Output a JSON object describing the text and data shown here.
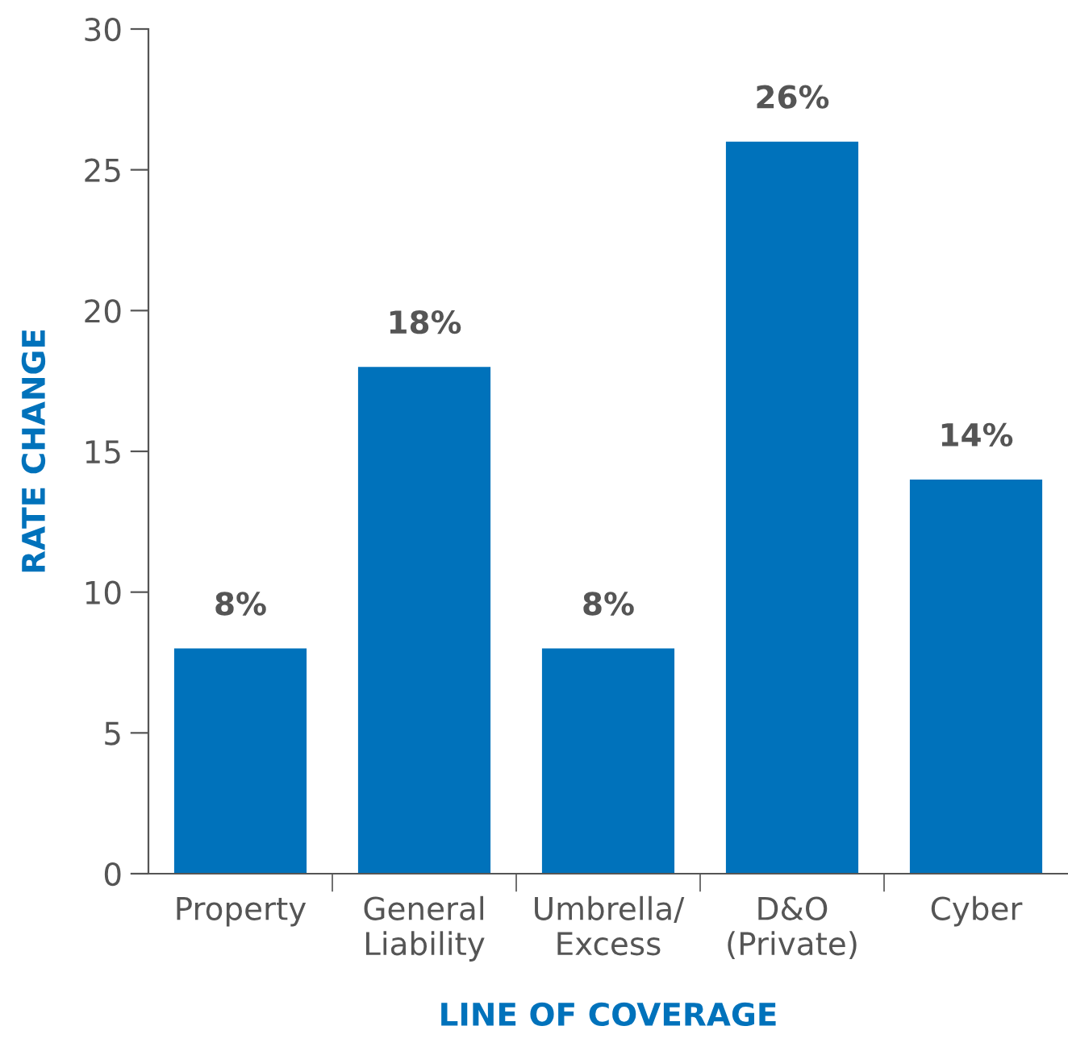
{
  "chart_data": {
    "type": "bar",
    "xlabel": "LINE OF COVERAGE",
    "ylabel": "RATE CHANGE",
    "categories": [
      "Property",
      "General\nLiability",
      "Umbrella/\nExcess",
      "D&O\n(Private)",
      "Cyber"
    ],
    "values": [
      8,
      18,
      8,
      26,
      14
    ],
    "value_labels": [
      "8%",
      "18%",
      "8%",
      "26%",
      "14%"
    ],
    "color": "#0072bb",
    "ylim": [
      0,
      30
    ],
    "yticks": [
      0,
      5,
      10,
      15,
      20,
      25,
      30
    ],
    "grid": false,
    "legend": false
  }
}
